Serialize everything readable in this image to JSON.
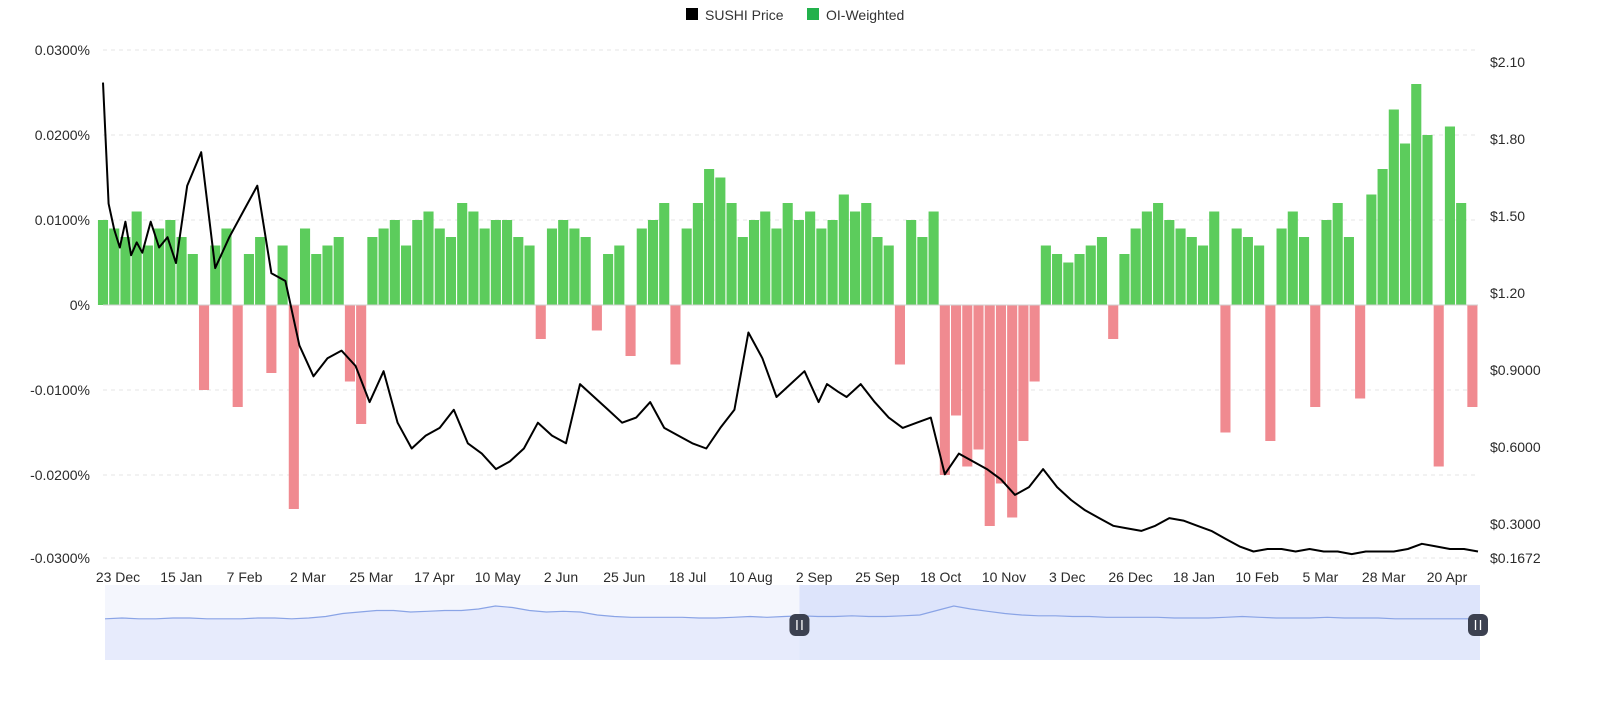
{
  "legend": [
    {
      "label": "SUSHI Price",
      "color": "#000000"
    },
    {
      "label": "OI-Weighted",
      "color": "#22b14c"
    }
  ],
  "colors": {
    "positive_fill": "#5ccc5c",
    "negative_fill": "#f08a90",
    "price_line": "#000000",
    "gridline": "#e6e6e6",
    "navigator_line": "#8aa4e6",
    "navigator_fill": "#e3e9fb",
    "navigator_selected": "#dde4fb",
    "handle": "#3c4150"
  },
  "chart_data": {
    "type": "line",
    "title": "",
    "left_axis": {
      "ticks": [
        "0.0300%",
        "0.0200%",
        "0.0100%",
        "0%",
        "-0.0100%",
        "-0.0200%",
        "-0.0300%"
      ],
      "range": [
        -0.03,
        0.03
      ]
    },
    "right_axis": {
      "ticks": [
        "$2.10",
        "$1.80",
        "$1.50",
        "$1.20",
        "$0.9000",
        "$0.6000",
        "$0.3000",
        "$0.1672"
      ],
      "range": [
        0.1672,
        2.1
      ]
    },
    "x_ticks": [
      "23 Dec",
      "15 Jan",
      "7 Feb",
      "2 Mar",
      "25 Mar",
      "17 Apr",
      "10 May",
      "2 Jun",
      "25 Jun",
      "18 Jul",
      "10 Aug",
      "2 Sep",
      "25 Sep",
      "18 Oct",
      "10 Nov",
      "3 Dec",
      "26 Dec",
      "18 Jan",
      "10 Feb",
      "5 Mar",
      "28 Mar",
      "20 Apr"
    ],
    "grid": true,
    "legend_position": "top-center",
    "series": [
      {
        "name": "SUSHI Price",
        "type": "line",
        "axis": "right",
        "x": [
          0,
          2,
          4,
          6,
          8,
          10,
          12,
          14,
          17,
          20,
          23,
          26,
          30,
          35,
          40,
          45,
          50,
          55,
          60,
          65,
          70,
          75,
          80,
          85,
          90,
          95,
          100,
          105,
          110,
          115,
          120,
          125,
          130,
          135,
          140,
          145,
          150,
          155,
          160,
          165,
          170,
          175,
          180,
          185,
          190,
          195,
          200,
          205,
          210,
          215,
          220,
          225,
          230,
          235,
          240,
          245,
          250,
          255,
          258,
          262,
          265,
          270,
          275,
          280,
          285,
          290,
          295,
          300,
          305,
          310,
          315,
          320,
          325,
          330,
          335,
          340,
          345,
          350,
          355,
          360,
          365,
          370,
          375,
          380,
          385,
          390,
          395,
          400,
          405,
          410,
          415,
          420,
          425,
          430,
          435,
          440,
          445,
          450,
          455,
          460,
          465,
          470,
          475,
          480,
          485,
          490
        ],
        "values": [
          2.02,
          1.55,
          1.45,
          1.38,
          1.48,
          1.35,
          1.4,
          1.36,
          1.48,
          1.38,
          1.42,
          1.32,
          1.62,
          1.75,
          1.3,
          1.42,
          1.52,
          1.62,
          1.28,
          1.25,
          1.0,
          0.88,
          0.95,
          0.98,
          0.92,
          0.78,
          0.9,
          0.7,
          0.6,
          0.65,
          0.68,
          0.75,
          0.62,
          0.58,
          0.52,
          0.55,
          0.6,
          0.7,
          0.65,
          0.62,
          0.85,
          0.8,
          0.75,
          0.7,
          0.72,
          0.78,
          0.68,
          0.65,
          0.62,
          0.6,
          0.68,
          0.75,
          1.05,
          0.95,
          0.8,
          0.85,
          0.9,
          0.78,
          0.85,
          0.82,
          0.8,
          0.85,
          0.78,
          0.72,
          0.68,
          0.7,
          0.72,
          0.5,
          0.58,
          0.55,
          0.52,
          0.48,
          0.42,
          0.45,
          0.52,
          0.45,
          0.4,
          0.36,
          0.33,
          0.3,
          0.29,
          0.28,
          0.3,
          0.33,
          0.32,
          0.3,
          0.28,
          0.25,
          0.22,
          0.2,
          0.21,
          0.21,
          0.2,
          0.21,
          0.2,
          0.2,
          0.19,
          0.2,
          0.2,
          0.2,
          0.21,
          0.23,
          0.22,
          0.21,
          0.21,
          0.2
        ]
      },
      {
        "name": "OI-Weighted",
        "type": "bar",
        "axis": "left",
        "x": [
          0,
          4,
          8,
          12,
          16,
          20,
          24,
          28,
          32,
          36,
          40,
          44,
          48,
          52,
          56,
          60,
          64,
          68,
          72,
          76,
          80,
          84,
          88,
          92,
          96,
          100,
          104,
          108,
          112,
          116,
          120,
          124,
          128,
          132,
          136,
          140,
          144,
          148,
          152,
          156,
          160,
          164,
          168,
          172,
          176,
          180,
          184,
          188,
          192,
          196,
          200,
          204,
          208,
          212,
          216,
          220,
          224,
          228,
          232,
          236,
          240,
          244,
          248,
          252,
          256,
          260,
          264,
          268,
          272,
          276,
          280,
          284,
          288,
          292,
          296,
          300,
          304,
          308,
          312,
          316,
          320,
          324,
          328,
          332,
          336,
          340,
          344,
          348,
          352,
          356,
          360,
          364,
          368,
          372,
          376,
          380,
          384,
          388,
          392,
          396,
          400,
          404,
          408,
          412,
          416,
          420,
          424,
          428,
          432,
          436,
          440,
          444,
          448,
          452,
          456,
          460,
          464,
          468,
          472,
          476,
          480,
          484,
          488
        ],
        "values": [
          0.01,
          0.009,
          0.008,
          0.011,
          0.007,
          0.009,
          0.01,
          0.008,
          0.006,
          -0.01,
          0.007,
          0.009,
          -0.012,
          0.006,
          0.008,
          -0.008,
          0.007,
          -0.024,
          0.009,
          0.006,
          0.007,
          0.008,
          -0.009,
          -0.014,
          0.008,
          0.009,
          0.01,
          0.007,
          0.01,
          0.011,
          0.009,
          0.008,
          0.012,
          0.011,
          0.009,
          0.01,
          0.01,
          0.008,
          0.007,
          -0.004,
          0.009,
          0.01,
          0.009,
          0.008,
          -0.003,
          0.006,
          0.007,
          -0.006,
          0.009,
          0.01,
          0.012,
          -0.007,
          0.009,
          0.012,
          0.016,
          0.015,
          0.012,
          0.008,
          0.01,
          0.011,
          0.009,
          0.012,
          0.01,
          0.011,
          0.009,
          0.01,
          0.013,
          0.011,
          0.012,
          0.008,
          0.007,
          -0.007,
          0.01,
          0.008,
          0.011,
          -0.02,
          -0.013,
          -0.019,
          -0.017,
          -0.026,
          -0.021,
          -0.025,
          -0.016,
          -0.009,
          0.007,
          0.006,
          0.005,
          0.006,
          0.007,
          0.008,
          -0.004,
          0.006,
          0.009,
          0.011,
          0.012,
          0.01,
          0.009,
          0.008,
          0.007,
          0.011,
          -0.015,
          0.009,
          0.008,
          0.007,
          -0.016,
          0.009,
          0.011,
          0.008,
          -0.012,
          0.01,
          0.012,
          0.008,
          -0.011,
          0.013,
          0.016,
          0.023,
          0.019,
          0.026,
          0.02,
          -0.019,
          0.021,
          0.012,
          -0.012
        ]
      }
    ]
  },
  "navigator": {
    "selected_range": [
      250,
      495
    ],
    "series_values": [
      0.55,
      0.56,
      0.55,
      0.55,
      0.56,
      0.56,
      0.55,
      0.55,
      0.55,
      0.56,
      0.56,
      0.55,
      0.56,
      0.58,
      0.62,
      0.64,
      0.66,
      0.66,
      0.64,
      0.65,
      0.66,
      0.66,
      0.68,
      0.72,
      0.7,
      0.66,
      0.64,
      0.65,
      0.64,
      0.6,
      0.58,
      0.57,
      0.57,
      0.57,
      0.57,
      0.56,
      0.56,
      0.57,
      0.58,
      0.57,
      0.58,
      0.59,
      0.58,
      0.58,
      0.59,
      0.58,
      0.58,
      0.59,
      0.6,
      0.66,
      0.72,
      0.68,
      0.65,
      0.62,
      0.6,
      0.59,
      0.59,
      0.58,
      0.58,
      0.57,
      0.57,
      0.57,
      0.57,
      0.56,
      0.56,
      0.56,
      0.57,
      0.58,
      0.57,
      0.56,
      0.56,
      0.56,
      0.57,
      0.56,
      0.56,
      0.56,
      0.55,
      0.55,
      0.55,
      0.55,
      0.55,
      0.55
    ]
  }
}
